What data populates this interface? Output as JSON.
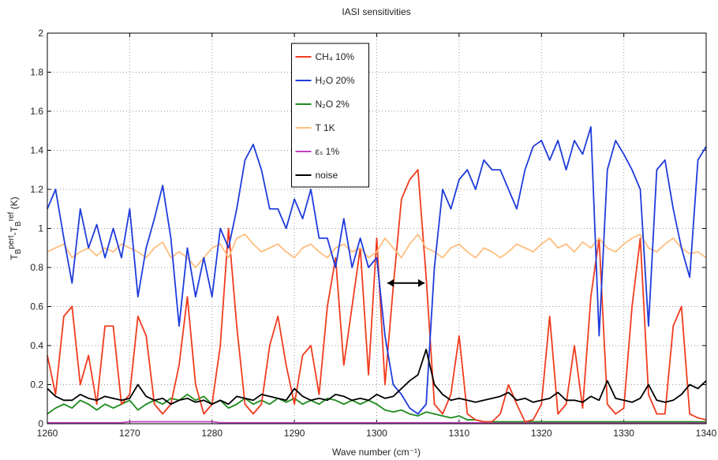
{
  "chart_data": {
    "type": "line",
    "title": "IASI sensitivities",
    "x_label": "Wave number (cm⁻¹)",
    "y_label_parts": [
      "T",
      "B",
      "pert",
      "-T",
      "B",
      "ref",
      " (K)"
    ],
    "xlim": [
      1260,
      1340
    ],
    "xticks": [
      1260,
      1270,
      1280,
      1290,
      1300,
      1310,
      1320,
      1330,
      1340
    ],
    "ylim": [
      0,
      2
    ],
    "yticks": [
      0,
      0.2,
      0.4,
      0.6,
      0.8,
      1,
      1.2,
      1.4,
      1.6,
      1.8,
      2
    ],
    "grid": true,
    "legend": "upper center",
    "x": [
      1260,
      1261,
      1262,
      1263,
      1264,
      1265,
      1266,
      1267,
      1268,
      1269,
      1270,
      1271,
      1272,
      1273,
      1274,
      1275,
      1276,
      1277,
      1278,
      1279,
      1280,
      1281,
      1282,
      1283,
      1284,
      1285,
      1286,
      1287,
      1288,
      1289,
      1290,
      1291,
      1292,
      1293,
      1294,
      1295,
      1296,
      1297,
      1298,
      1299,
      1300,
      1301,
      1302,
      1303,
      1304,
      1305,
      1306,
      1307,
      1308,
      1309,
      1310,
      1311,
      1312,
      1313,
      1314,
      1315,
      1316,
      1317,
      1318,
      1319,
      1320,
      1321,
      1322,
      1323,
      1324,
      1325,
      1326,
      1327,
      1328,
      1329,
      1330,
      1331,
      1332,
      1333,
      1334,
      1335,
      1336,
      1337,
      1338,
      1339,
      1340
    ],
    "series": [
      {
        "name": "CH₄ 10%",
        "color": "#f03c1e",
        "values": [
          0.35,
          0.15,
          0.55,
          0.6,
          0.2,
          0.35,
          0.1,
          0.5,
          0.5,
          0.1,
          0.15,
          0.55,
          0.45,
          0.1,
          0.05,
          0.1,
          0.3,
          0.65,
          0.2,
          0.05,
          0.1,
          0.4,
          1.0,
          0.5,
          0.1,
          0.05,
          0.1,
          0.4,
          0.55,
          0.3,
          0.1,
          0.35,
          0.4,
          0.15,
          0.6,
          0.85,
          0.3,
          0.6,
          0.9,
          0.25,
          0.95,
          0.2,
          0.7,
          1.15,
          1.25,
          1.3,
          0.75,
          0.1,
          0.05,
          0.15,
          0.45,
          0.05,
          0.02,
          0.01,
          0.01,
          0.05,
          0.2,
          0.1,
          0.01,
          0.02,
          0.1,
          0.55,
          0.05,
          0.1,
          0.4,
          0.08,
          0.65,
          0.95,
          0.1,
          0.05,
          0.08,
          0.6,
          0.95,
          0.15,
          0.05,
          0.05,
          0.5,
          0.6,
          0.05,
          0.03,
          0.02
        ]
      },
      {
        "name": "H₂O 20%",
        "color": "#1e3cdc",
        "values": [
          1.1,
          1.2,
          0.95,
          0.72,
          1.1,
          0.9,
          1.02,
          0.85,
          1.0,
          0.85,
          1.1,
          0.65,
          0.9,
          1.05,
          1.22,
          0.95,
          0.5,
          0.9,
          0.65,
          0.85,
          0.65,
          1.0,
          0.9,
          1.1,
          1.35,
          1.43,
          1.3,
          1.1,
          1.1,
          1.0,
          1.15,
          1.05,
          1.2,
          0.95,
          0.95,
          0.8,
          1.05,
          0.8,
          0.95,
          0.8,
          0.85,
          0.45,
          0.2,
          0.15,
          0.08,
          0.05,
          0.1,
          0.8,
          1.2,
          1.1,
          1.25,
          1.3,
          1.2,
          1.35,
          1.3,
          1.3,
          1.2,
          1.1,
          1.3,
          1.42,
          1.45,
          1.35,
          1.45,
          1.3,
          1.45,
          1.38,
          1.52,
          0.45,
          1.3,
          1.45,
          1.38,
          1.3,
          1.2,
          0.5,
          1.3,
          1.35,
          1.1,
          0.9,
          0.75,
          1.35,
          1.42
        ]
      },
      {
        "name": "N₂O 2%",
        "color": "#1e8c1e",
        "values": [
          0.05,
          0.08,
          0.1,
          0.08,
          0.12,
          0.1,
          0.07,
          0.1,
          0.08,
          0.1,
          0.12,
          0.07,
          0.1,
          0.12,
          0.1,
          0.13,
          0.12,
          0.15,
          0.12,
          0.14,
          0.1,
          0.12,
          0.08,
          0.1,
          0.13,
          0.1,
          0.12,
          0.1,
          0.13,
          0.11,
          0.13,
          0.1,
          0.12,
          0.1,
          0.13,
          0.12,
          0.1,
          0.12,
          0.1,
          0.12,
          0.1,
          0.07,
          0.06,
          0.07,
          0.05,
          0.04,
          0.06,
          0.05,
          0.04,
          0.03,
          0.04,
          0.02,
          0.02,
          0.01,
          0.01,
          0.01,
          0.01,
          0.01,
          0.01,
          0.01,
          0.01,
          0.01,
          0.01,
          0.01,
          0.01,
          0.01,
          0.01,
          0.01,
          0.01,
          0.01,
          0.01,
          0.01,
          0.01,
          0.01,
          0.01,
          0.01,
          0.01,
          0.01,
          0.01,
          0.01,
          0.01
        ]
      },
      {
        "name": "T  1K",
        "color": "#ffbf80",
        "values": [
          0.88,
          0.9,
          0.92,
          0.85,
          0.88,
          0.9,
          0.86,
          0.9,
          0.88,
          0.92,
          0.9,
          0.88,
          0.85,
          0.9,
          0.93,
          0.85,
          0.88,
          0.85,
          0.8,
          0.85,
          0.9,
          0.92,
          0.85,
          0.95,
          0.97,
          0.92,
          0.88,
          0.9,
          0.92,
          0.88,
          0.85,
          0.9,
          0.92,
          0.88,
          0.85,
          0.9,
          0.92,
          0.88,
          0.9,
          0.85,
          0.88,
          0.95,
          0.9,
          0.85,
          0.92,
          0.97,
          0.9,
          0.88,
          0.85,
          0.9,
          0.92,
          0.88,
          0.85,
          0.9,
          0.88,
          0.85,
          0.88,
          0.92,
          0.9,
          0.88,
          0.92,
          0.95,
          0.9,
          0.92,
          0.88,
          0.93,
          0.9,
          0.95,
          0.9,
          0.88,
          0.92,
          0.95,
          0.97,
          0.9,
          0.88,
          0.92,
          0.95,
          0.9,
          0.87,
          0.88,
          0.85
        ]
      },
      {
        "name": "εₛ 1%",
        "color": "#c040c0",
        "values": [
          0.005,
          0.005,
          0.005,
          0.005,
          0.005,
          0.005,
          0.005,
          0.005,
          0.005,
          0.005,
          0.01,
          0.01,
          0.01,
          0.01,
          0.01,
          0.01,
          0.01,
          0.01,
          0.01,
          0.01,
          0.01,
          0.005,
          0.005,
          0.005,
          0.005,
          0.005,
          0.005,
          0.005,
          0.005,
          0.005,
          0.005,
          0.005,
          0.005,
          0.005,
          0.005,
          0.005,
          0.005,
          0.005,
          0.005,
          0.005,
          0.005,
          0.005,
          0.005,
          0.005,
          0.005,
          0.005,
          0.005,
          0.005,
          0.005,
          0.005,
          0.005,
          0.005,
          0.005,
          0.005,
          0.005,
          0.005,
          0.005,
          0.005,
          0.005,
          0.005,
          0.005,
          0.005,
          0.005,
          0.005,
          0.005,
          0.005,
          0.005,
          0.005,
          0.005,
          0.005,
          0.005,
          0.005,
          0.005,
          0.005,
          0.005,
          0.005,
          0.005,
          0.005,
          0.005,
          0.005,
          0.005
        ]
      },
      {
        "name": "noise",
        "color": "#000000",
        "values": [
          0.18,
          0.14,
          0.12,
          0.12,
          0.15,
          0.13,
          0.12,
          0.14,
          0.13,
          0.12,
          0.13,
          0.2,
          0.14,
          0.12,
          0.13,
          0.1,
          0.12,
          0.13,
          0.11,
          0.12,
          0.1,
          0.12,
          0.1,
          0.14,
          0.13,
          0.12,
          0.15,
          0.14,
          0.13,
          0.12,
          0.18,
          0.14,
          0.12,
          0.13,
          0.12,
          0.15,
          0.14,
          0.12,
          0.13,
          0.12,
          0.15,
          0.13,
          0.14,
          0.18,
          0.22,
          0.25,
          0.38,
          0.2,
          0.15,
          0.12,
          0.13,
          0.12,
          0.11,
          0.12,
          0.13,
          0.14,
          0.16,
          0.12,
          0.13,
          0.11,
          0.12,
          0.13,
          0.16,
          0.12,
          0.12,
          0.11,
          0.14,
          0.12,
          0.22,
          0.13,
          0.12,
          0.11,
          0.13,
          0.2,
          0.12,
          0.11,
          0.12,
          0.15,
          0.2,
          0.18,
          0.22
        ]
      }
    ]
  }
}
